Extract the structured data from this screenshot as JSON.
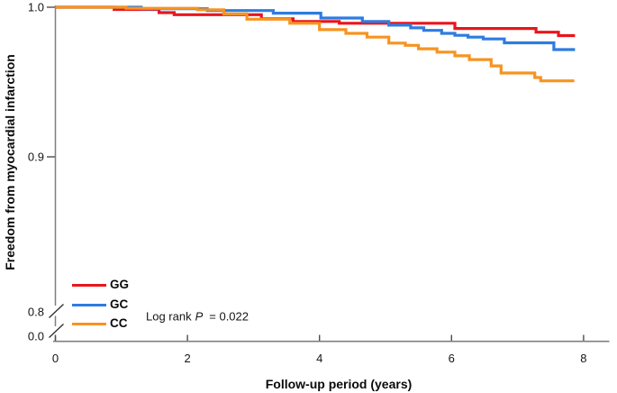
{
  "chart_data": {
    "type": "line",
    "subtype": "kaplan-meier-step",
    "title": "",
    "xlabel": "Follow-up period (years)",
    "ylabel": "Freedom from myocardial infarction",
    "x_ticks": [
      0,
      2,
      4,
      6,
      8
    ],
    "y_tick_labels": [
      "1.0",
      "0.9",
      "0.8",
      "0.0"
    ],
    "y_axis_break": true,
    "xlim": [
      0,
      8.4
    ],
    "ylim_shown": [
      0.8,
      1.0
    ],
    "grid": false,
    "legend_position": "lower-left",
    "annotation": {
      "text_plain": "Log rank P = 0.022",
      "pre": "Log rank",
      "italic": "P",
      "post": "= 0.022"
    },
    "colors": {
      "GG": "#e9151b",
      "GC": "#2e7ce0",
      "CC": "#f79321",
      "axis_line": "#7f7f7f",
      "tick_mark": "#4d4d4d",
      "text": "#111111"
    },
    "series": [
      {
        "name": "GG",
        "color": "#e9151b",
        "end_x": 7.87,
        "steps": [
          [
            0,
            1.0
          ],
          [
            0.89,
            0.9985
          ],
          [
            1.57,
            0.9964
          ],
          [
            1.8,
            0.995
          ],
          [
            3.12,
            0.9922
          ],
          [
            3.6,
            0.9905
          ],
          [
            4.3,
            0.9893
          ],
          [
            6.05,
            0.9858
          ],
          [
            7.28,
            0.9833
          ],
          [
            7.62,
            0.981
          ]
        ]
      },
      {
        "name": "GC",
        "color": "#2e7ce0",
        "end_x": 7.87,
        "steps": [
          [
            0,
            1.0
          ],
          [
            1.3,
            0.999
          ],
          [
            2.3,
            0.9978
          ],
          [
            3.3,
            0.996
          ],
          [
            4.02,
            0.9928
          ],
          [
            4.65,
            0.9905
          ],
          [
            5.05,
            0.988
          ],
          [
            5.38,
            0.9862
          ],
          [
            5.58,
            0.9845
          ],
          [
            5.85,
            0.9825
          ],
          [
            6.05,
            0.9812
          ],
          [
            6.25,
            0.98
          ],
          [
            6.48,
            0.9788
          ],
          [
            6.8,
            0.9762
          ],
          [
            7.55,
            0.9717
          ]
        ]
      },
      {
        "name": "CC",
        "color": "#f79321",
        "end_x": 7.86,
        "steps": [
          [
            0,
            1.0
          ],
          [
            1.07,
            0.9993
          ],
          [
            2.15,
            0.9983
          ],
          [
            2.55,
            0.9955
          ],
          [
            2.9,
            0.992
          ],
          [
            3.55,
            0.9893
          ],
          [
            4.0,
            0.985
          ],
          [
            4.4,
            0.9825
          ],
          [
            4.72,
            0.98
          ],
          [
            5.05,
            0.976
          ],
          [
            5.3,
            0.9745
          ],
          [
            5.5,
            0.9722
          ],
          [
            5.78,
            0.97
          ],
          [
            6.05,
            0.9675
          ],
          [
            6.27,
            0.965
          ],
          [
            6.6,
            0.9608
          ],
          [
            6.75,
            0.956
          ],
          [
            7.26,
            0.953
          ],
          [
            7.35,
            0.9508
          ]
        ]
      }
    ]
  }
}
